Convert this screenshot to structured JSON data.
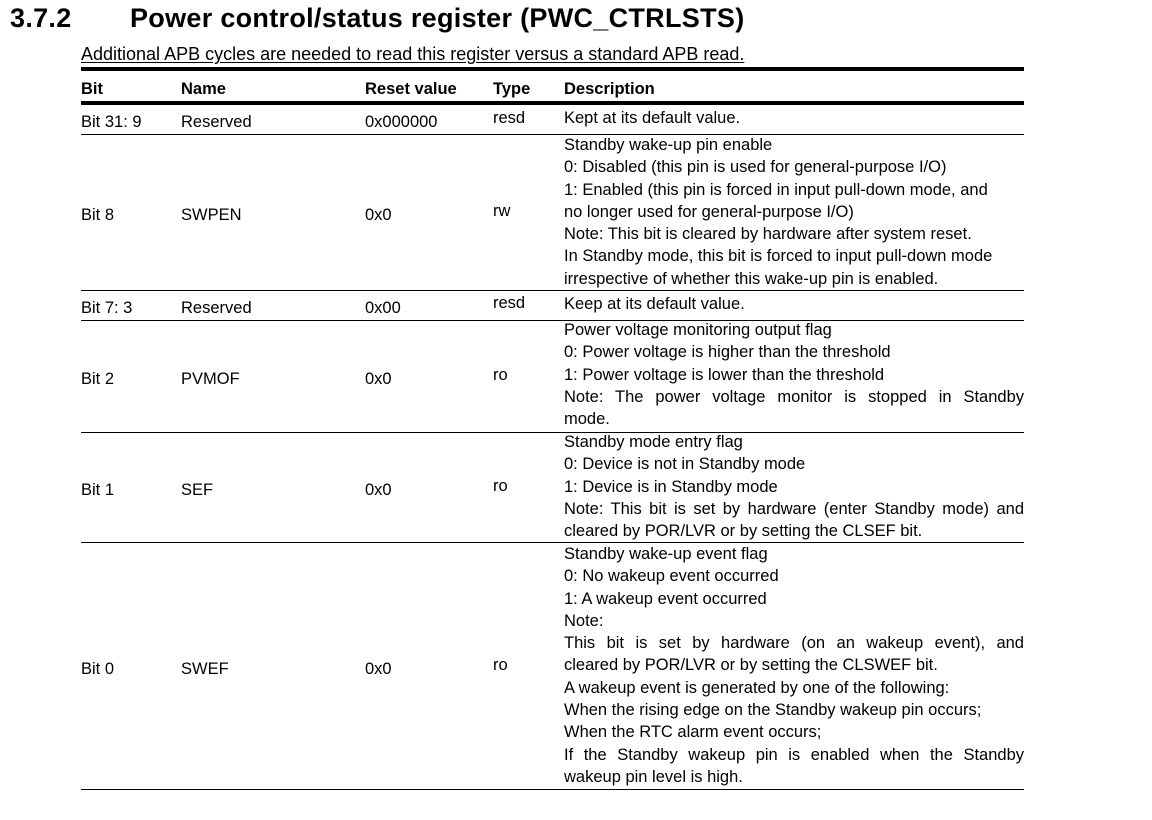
{
  "section": {
    "number": "3.7.2",
    "title": "Power control/status register (PWC_CTRLSTS)"
  },
  "subtitle": "Additional APB cycles are needed to read this register versus a standard APB read.",
  "table": {
    "headers": [
      "Bit",
      "Name",
      "Reset value",
      "Type",
      "Description"
    ],
    "rows": [
      {
        "bit": "Bit 31: 9",
        "name": "Reserved",
        "reset": "0x000000",
        "type": "resd",
        "desc": [
          "Kept at its default value."
        ]
      },
      {
        "bit": "Bit 8",
        "name": "SWPEN",
        "reset": "0x0",
        "type": "rw",
        "desc": [
          "Standby wake-up pin enable",
          "0: Disabled (this pin is used for general-purpose I/O)",
          "1: Enabled (this pin is forced in input pull-down mode, and",
          "no longer used for general-purpose I/O)",
          "Note: This bit is cleared by hardware after system reset.",
          "In Standby mode, this bit is forced to input pull-down mode",
          "irrespective of whether this wake-up pin is enabled."
        ]
      },
      {
        "bit": "Bit 7: 3",
        "name": "Reserved",
        "reset": "0x00",
        "type": "resd",
        "desc": [
          "Keep at its default value."
        ]
      },
      {
        "bit": "Bit 2",
        "name": "PVMOF",
        "reset": "0x0",
        "type": "ro",
        "desc": [
          "Power voltage monitoring output flag",
          "0: Power voltage is higher than the threshold",
          "1: Power voltage is lower than the threshold",
          "Note: The power voltage monitor is stopped in Standby",
          "mode."
        ]
      },
      {
        "bit": "Bit 1",
        "name": "SEF",
        "reset": "0x0",
        "type": "ro",
        "desc": [
          "Standby mode entry flag",
          "0: Device is not in Standby mode",
          "1: Device is in Standby mode",
          "Note: This bit is set by hardware (enter Standby mode) and",
          "cleared by POR/LVR or by setting the CLSEF bit."
        ]
      },
      {
        "bit": "Bit 0",
        "name": "SWEF",
        "reset": "0x0",
        "type": "ro",
        "desc": [
          "Standby wake-up event flag",
          "0: No wakeup event occurred",
          "1: A wakeup event occurred",
          "Note:",
          "This bit is set by hardware (on an wakeup event), and",
          "cleared by POR/LVR or by setting the CLSWEF bit.",
          "A wakeup event is generated by one of the following:",
          "When the rising edge on the Standby wakeup pin occurs;",
          "When the RTC alarm event occurs;",
          "If the Standby wakeup pin is enabled when the Standby",
          "wakeup pin level is high."
        ]
      }
    ]
  }
}
